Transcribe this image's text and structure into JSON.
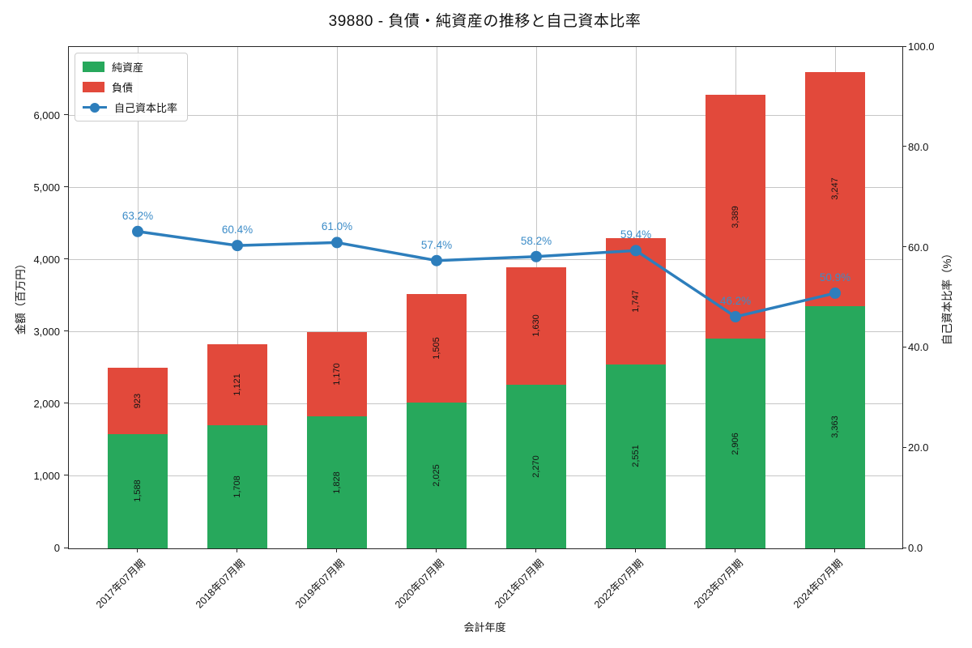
{
  "title": "39880 - 負債・純資産の推移と自己資本比率",
  "legend": {
    "items": [
      {
        "label": "純資産",
        "marker": "swatch",
        "color": "#27a85c"
      },
      {
        "label": "負債",
        "marker": "swatch",
        "color": "#e2493b"
      },
      {
        "label": "自己資本比率",
        "marker": "line-dot",
        "color": "#2d7ebc"
      }
    ]
  },
  "axes": {
    "x": {
      "label": "会計年度",
      "tick_labels": [
        "2017年07月期",
        "2018年07月期",
        "2019年07月期",
        "2020年07月期",
        "2021年07月期",
        "2022年07月期",
        "2023年07月期",
        "2024年07月期"
      ]
    },
    "y_left": {
      "label": "金額（百万円）",
      "tick_labels": [
        "0",
        "1,000",
        "2,000",
        "3,000",
        "4,000",
        "5,000",
        "6,000"
      ]
    },
    "y_right": {
      "label": "自己資本比率（%）",
      "tick_labels": [
        "0.0",
        "20.0",
        "40.0",
        "60.0",
        "80.0",
        "100.0"
      ]
    }
  },
  "colors": {
    "net_assets": "#27a85c",
    "liabilities": "#e2493b",
    "ratio_line": "#2d7ebc",
    "pct_label": "#3c8cc8",
    "grid": "#c6c6c6",
    "axis": "#262626",
    "bar_label": "#141414"
  },
  "chart_data": {
    "type": "bar",
    "subtype": "stacked-bar-with-line-overlay",
    "title": "39880 - 負債・純資産の推移と自己資本比率",
    "xlabel": "会計年度",
    "ylabel_left": "金額（百万円）",
    "ylabel_right": "自己資本比率（%）",
    "categories": [
      "2017年07月期",
      "2018年07月期",
      "2019年07月期",
      "2020年07月期",
      "2021年07月期",
      "2022年07月期",
      "2023年07月期",
      "2024年07月期"
    ],
    "series": [
      {
        "name": "純資産",
        "type": "bar",
        "stack_order": 0,
        "color": "#27a85c",
        "values": [
          1588,
          1708,
          1828,
          2025,
          2270,
          2551,
          2906,
          3363
        ],
        "labels": [
          "1,588",
          "1,708",
          "1,828",
          "2,025",
          "2,270",
          "2,551",
          "2,906",
          "3,363"
        ]
      },
      {
        "name": "負債",
        "type": "bar",
        "stack_order": 1,
        "color": "#e2493b",
        "values": [
          923,
          1121,
          1170,
          1505,
          1630,
          1747,
          3389,
          3247
        ],
        "labels": [
          "923",
          "1,121",
          "1,170",
          "1,505",
          "1,630",
          "1,747",
          "3,389",
          "3,247"
        ]
      },
      {
        "name": "自己資本比率",
        "type": "line",
        "axis": "right",
        "color": "#2d7ebc",
        "values": [
          63.2,
          60.4,
          61.0,
          57.4,
          58.2,
          59.4,
          46.2,
          50.9
        ],
        "labels": [
          "63.2%",
          "60.4%",
          "61.0%",
          "57.4%",
          "58.2%",
          "59.4%",
          "46.2%",
          "50.9%"
        ]
      }
    ],
    "ylim_left": [
      0,
      6955
    ],
    "ylim_right": [
      0,
      100
    ],
    "yticks_left": [
      0,
      1000,
      2000,
      3000,
      4000,
      5000,
      6000
    ],
    "yticks_right": [
      0,
      20,
      40,
      60,
      80,
      100
    ],
    "grid": true,
    "legend_position": "upper-left"
  }
}
